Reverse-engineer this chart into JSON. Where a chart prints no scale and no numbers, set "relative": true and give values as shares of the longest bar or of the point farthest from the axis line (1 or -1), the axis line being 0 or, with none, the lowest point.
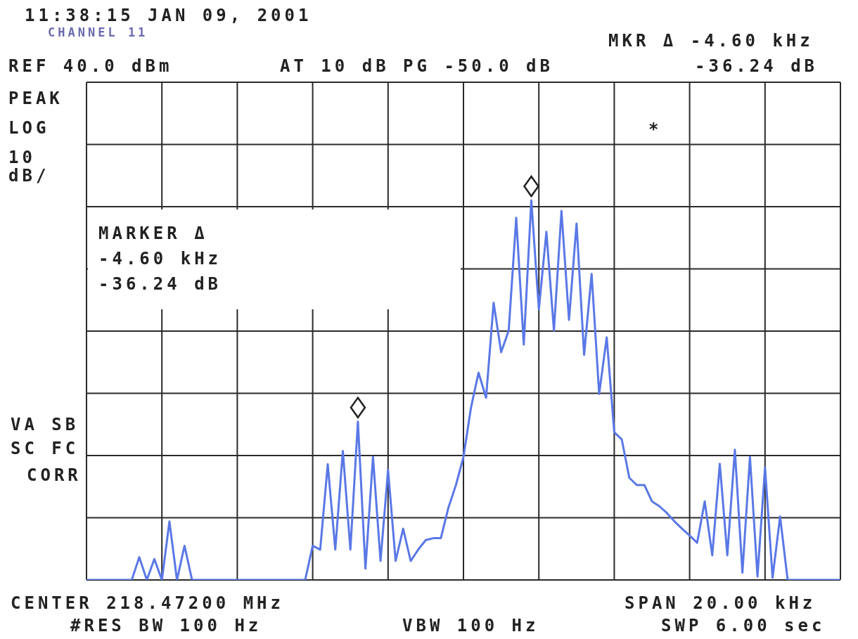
{
  "chart_data": {
    "type": "line",
    "relative": true,
    "grid": true,
    "marker": "none",
    "line_style": "solid",
    "categories": [
      null,
      null,
      null,
      null,
      null,
      null,
      null,
      null,
      null,
      null,
      null,
      null,
      null,
      null,
      null,
      null,
      null,
      null,
      null,
      null,
      null,
      null,
      null,
      null,
      null,
      null,
      null,
      null,
      null,
      null,
      null,
      null,
      null,
      null,
      null,
      null,
      null,
      null,
      null,
      null,
      null,
      null,
      null,
      null,
      null,
      null,
      null,
      null,
      null,
      null,
      null,
      null,
      null,
      null,
      null,
      null,
      null,
      null,
      null,
      null,
      null,
      null,
      null,
      null,
      null,
      null,
      null,
      null,
      null,
      null,
      null,
      null,
      null,
      null,
      null,
      null,
      null,
      null,
      null,
      null,
      null,
      null,
      null,
      null,
      null,
      null,
      null,
      null,
      null,
      null,
      null,
      null,
      null,
      null,
      null,
      null,
      null,
      null,
      null,
      null,
      null
    ],
    "series": [
      {
        "color": "#5a78e6",
        "values": [
          0,
          0,
          0,
          0,
          0,
          0,
          0,
          0.06,
          0,
          0.055,
          0,
          0.154,
          0,
          0.09,
          0,
          0,
          0,
          0,
          0,
          0,
          0,
          0,
          0,
          0,
          0,
          0,
          0,
          0,
          0,
          0,
          0.09,
          0.08,
          0.305,
          0.08,
          0.34,
          0.08,
          0.417,
          0.03,
          0.324,
          0.05,
          0.29,
          0.05,
          0.135,
          0.05,
          0.08,
          0.105,
          0.11,
          0.11,
          0.19,
          0.25,
          0.324,
          0.454,
          0.546,
          0.48,
          0.73,
          0.6,
          0.657,
          0.954,
          0.62,
          1,
          0.713,
          0.917,
          0.657,
          0.972,
          0.685,
          0.939,
          0.593,
          0.806,
          0.49,
          0.639,
          0.389,
          0.37,
          0.269,
          0.25,
          0.25,
          0.207,
          0.194,
          0.176,
          0.154,
          0.135,
          0.117,
          0.098,
          0.207,
          0.065,
          0.306,
          0.065,
          0.343,
          0.019,
          0.324,
          0.009,
          0.296,
          0.006,
          0.167,
          0,
          0,
          0,
          0,
          0,
          0,
          0,
          0
        ]
      }
    ],
    "annotations": [
      "11:38:15 JAN 09, 2001",
      "CHANNEL 11",
      "MKR Δ -4.60 kHz",
      "-36.24 dB",
      "REF 40.0 dBm",
      "AT 10 dB PG -50.0 dB",
      "PEAK",
      "LOG",
      "10",
      "dB/",
      "MARKER Δ",
      "-4.60 kHz",
      "-36.24 dB",
      "VA SB",
      "SC FC",
      "CORR",
      "*",
      "CENTER 218.47200 MHz",
      "SPAN 20.00 kHz",
      "#RES BW 100 Hz",
      "VBW 100 Hz",
      "SWP 6.00 sec"
    ]
  }
}
